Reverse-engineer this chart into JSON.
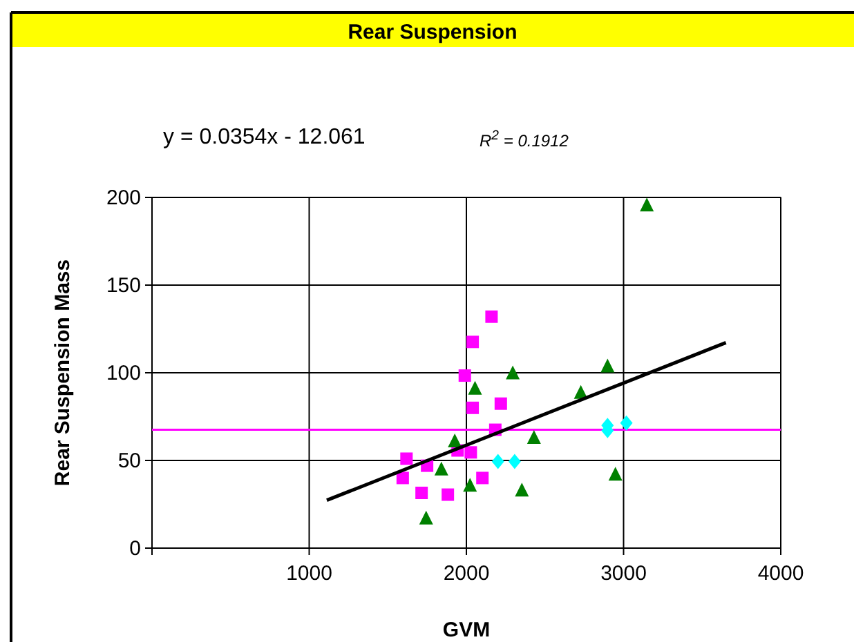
{
  "chart_data": {
    "type": "scatter",
    "title": "Rear Suspension",
    "xlabel": "GVM",
    "ylabel": "Rear Suspension Mass",
    "annotations": [
      "y = 0.0354x - 12.061",
      "R$^{2}$ = 0.1912"
    ],
    "xlim": [
      0,
      4000
    ],
    "xticks": [
      {
        "value": 0,
        "label": null
      },
      1000,
      2000,
      3000,
      4000
    ],
    "ylim": [
      0,
      200
    ],
    "yticks": [
      0,
      50,
      100,
      150,
      200
    ],
    "grid": true,
    "ref_lines": [
      {
        "axis": "y",
        "value": 67.5,
        "color": "#ff00ff"
      }
    ],
    "series": [
      {
        "marker": "square",
        "color": "#ff00ff",
        "x": [
          2160,
          2040,
          1990,
          2040,
          2219,
          2184,
          1619,
          1750,
          1944,
          2028,
          1595,
          2102,
          1715,
          1882
        ],
        "values": [
          132,
          117.6,
          98.4,
          80,
          82.4,
          67.5,
          51,
          47,
          55.7,
          54.6,
          40,
          40,
          31.5,
          30.5
        ]
      },
      {
        "marker": "triangle",
        "color": "#008000",
        "x": [
          2295,
          2055,
          1926,
          1841,
          2023,
          1744,
          2353,
          3148,
          2898,
          2728,
          2430,
          2948
        ],
        "values": [
          99.8,
          91,
          61,
          45,
          35.7,
          17,
          33,
          195.6,
          103.7,
          88.7,
          63,
          42
        ]
      },
      {
        "marker": "diamond",
        "color": "#00ffff",
        "x": [
          2201,
          2307,
          2898,
          2898,
          3018
        ],
        "values": [
          49.4,
          49.4,
          70,
          67,
          71.4
        ]
      },
      {
        "type": "line",
        "marker": "none",
        "color": "#000000",
        "x": [
          1112,
          3651
        ],
        "values": [
          27.3,
          117.2
        ]
      }
    ]
  }
}
